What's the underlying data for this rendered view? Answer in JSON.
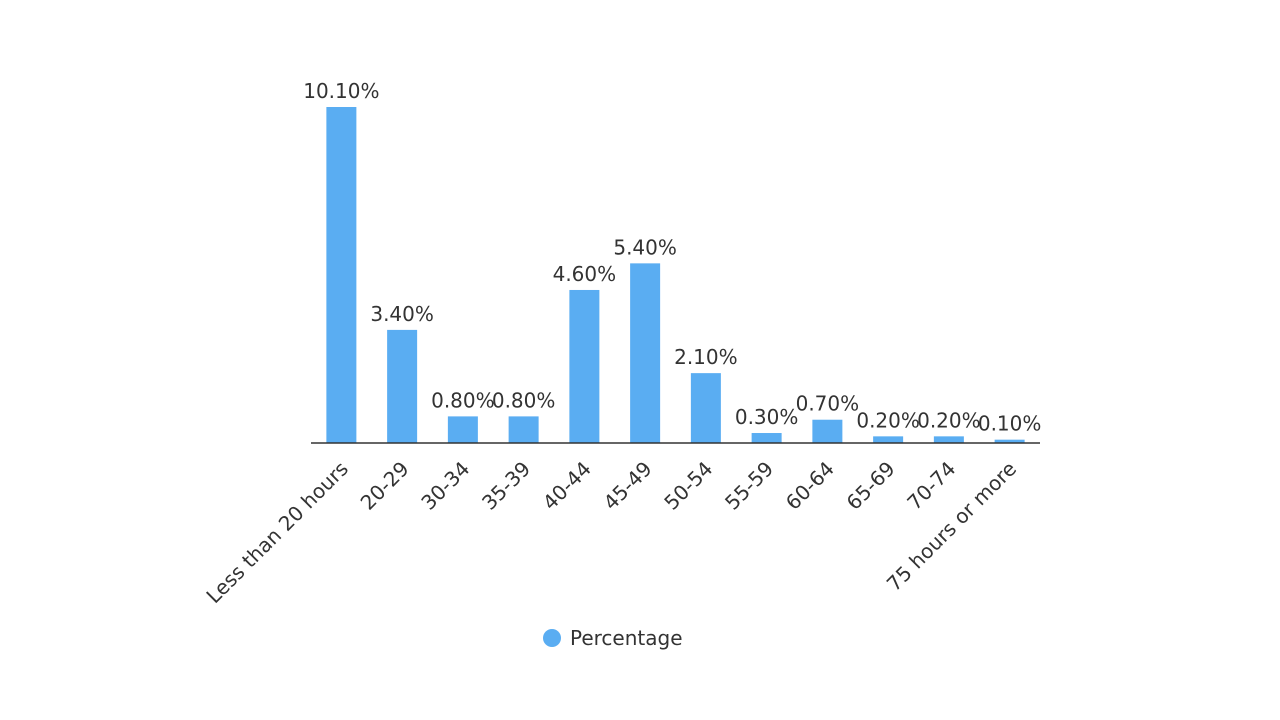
{
  "chart_data": {
    "type": "bar",
    "categories": [
      "Less than 20 hours",
      "20-29",
      "30-34",
      "35-39",
      "40-44",
      "45-49",
      "50-54",
      "55-59",
      "60-64",
      "65-69",
      "70-74",
      "75 hours or more"
    ],
    "series": [
      {
        "name": "Percentage",
        "color": "#5aadf2",
        "values": [
          10.1,
          3.4,
          0.8,
          0.8,
          4.6,
          5.4,
          2.1,
          0.3,
          0.7,
          0.2,
          0.2,
          0.1
        ],
        "value_labels": [
          "10.10%",
          "3.40%",
          "0.80%",
          "0.80%",
          "4.60%",
          "5.40%",
          "2.10%",
          "0.30%",
          "0.70%",
          "0.20%",
          "0.20%",
          "0.10%"
        ]
      }
    ],
    "legend": "bottom"
  }
}
